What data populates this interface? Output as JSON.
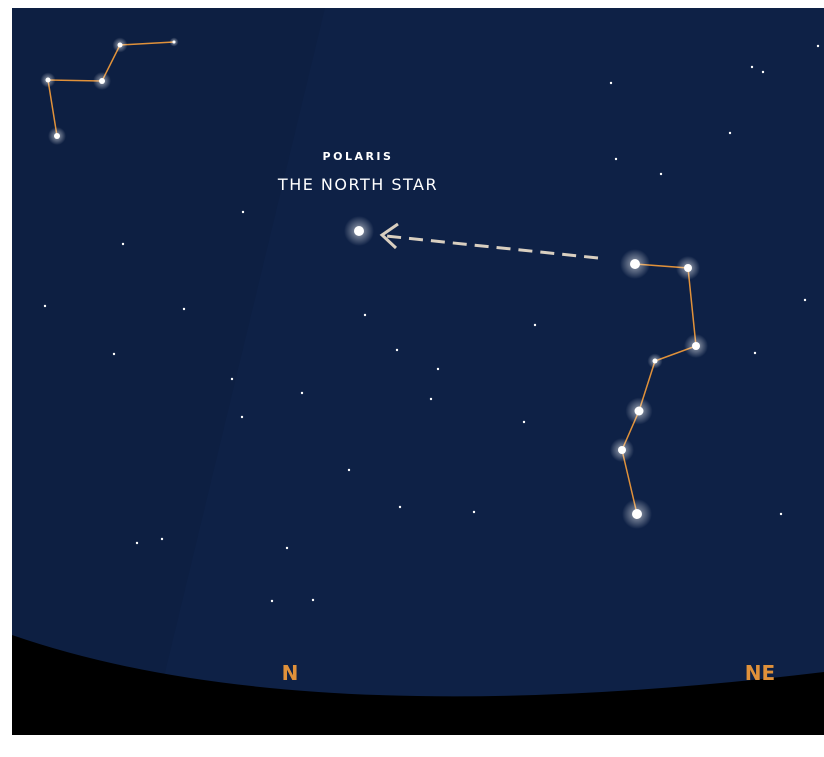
{
  "label": {
    "title": "POLARIS",
    "subtitle": "THE NORTH STAR"
  },
  "directions": [
    "N",
    "NE"
  ]
}
